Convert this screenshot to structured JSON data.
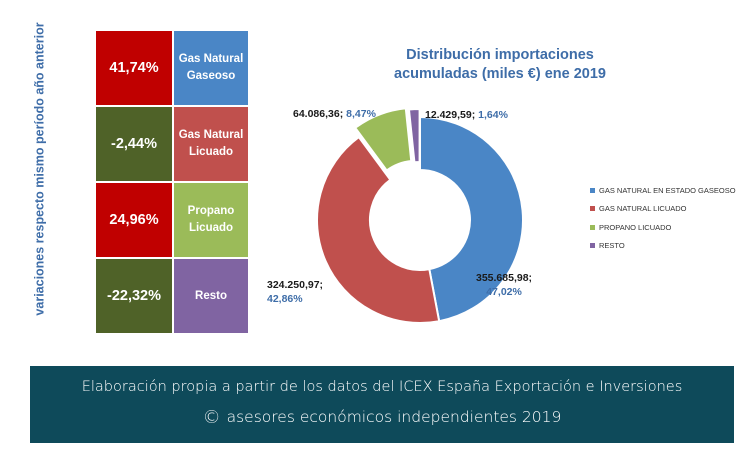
{
  "side_label": "variaciones respecto mismo período año anterior",
  "table": [
    {
      "variation": "41,74%",
      "name": "Gas Natural Gaseoso",
      "val_color": "#c00000",
      "name_color": "#4a86c6"
    },
    {
      "variation": "-2,44%",
      "name": "Gas Natural Licuado",
      "val_color": "#4f6228",
      "name_color": "#c0504d"
    },
    {
      "variation": "24,96%",
      "name": "Propano Licuado",
      "val_color": "#c00000",
      "name_color": "#9bbb59"
    },
    {
      "variation": "-22,32%",
      "name": "Resto",
      "val_color": "#4f6228",
      "name_color": "#8064a2"
    }
  ],
  "chart_data": {
    "type": "pie",
    "title_lines": [
      "Distribución importaciones",
      "acumuladas (miles €) ene 2019"
    ],
    "slices": [
      {
        "name": "GAS NATURAL EN ESTADO GASEOSO",
        "value": 355685.98,
        "value_label": "355.685,98;",
        "percent_label": "47,02%",
        "color": "#4a86c6"
      },
      {
        "name": "GAS NATURAL LICUADO",
        "value": 324250.97,
        "value_label": "324.250,97;",
        "percent_label": "42,86%",
        "color": "#c0504d"
      },
      {
        "name": "PROPANO LICUADO",
        "value": 64086.36,
        "value_label": "64.086,36;",
        "percent_label": "8,47%",
        "color": "#9bbb59"
      },
      {
        "name": "RESTO",
        "value": 12429.59,
        "value_label": "12.429,59;",
        "percent_label": "1,64%",
        "color": "#8064a2"
      }
    ],
    "legend_position": "right"
  },
  "footer": {
    "line1": "Elaboración propia a partir de los datos del ICEX España Exportación e Inversiones",
    "copyright_symbol": "©",
    "line2": "asesores económicos independientes 2019"
  }
}
